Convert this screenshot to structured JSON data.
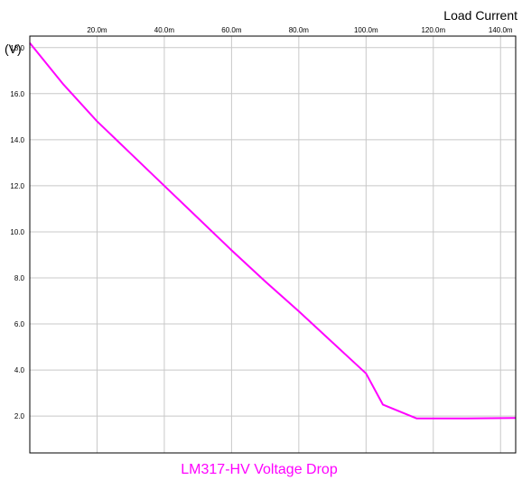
{
  "chart_data": {
    "type": "line",
    "xlabel": "Load Current",
    "ylabel": "(V)",
    "xlim": [
      0,
      0.1445
    ],
    "ylim": [
      0.4,
      18.5
    ],
    "x_ticks": [
      0.02,
      0.04,
      0.06,
      0.08,
      0.1,
      0.12,
      0.14
    ],
    "x_tick_labels": [
      "20.0m",
      "40.0m",
      "60.0m",
      "80.0m",
      "100.0m",
      "120.0m",
      "140.0m"
    ],
    "y_ticks": [
      2,
      4,
      6,
      8,
      10,
      12,
      14,
      16,
      18
    ],
    "y_tick_labels": [
      "2.0",
      "4.0",
      "6.0",
      "8.0",
      "10.0",
      "12.0",
      "14.0",
      "16.0",
      "18.0"
    ],
    "grid": true,
    "legend_position": "bottom-center",
    "series": [
      {
        "name": "LM317-HV Voltage Drop",
        "color": "#ff00ff",
        "x": [
          0,
          0.01,
          0.02,
          0.03,
          0.04,
          0.05,
          0.06,
          0.07,
          0.08,
          0.09,
          0.1,
          0.105,
          0.115,
          0.13,
          0.1445
        ],
        "y": [
          18.2,
          16.4,
          14.8,
          13.4,
          12.0,
          10.6,
          9.2,
          7.85,
          6.55,
          5.2,
          3.85,
          2.5,
          1.9,
          1.9,
          1.92
        ]
      }
    ]
  }
}
